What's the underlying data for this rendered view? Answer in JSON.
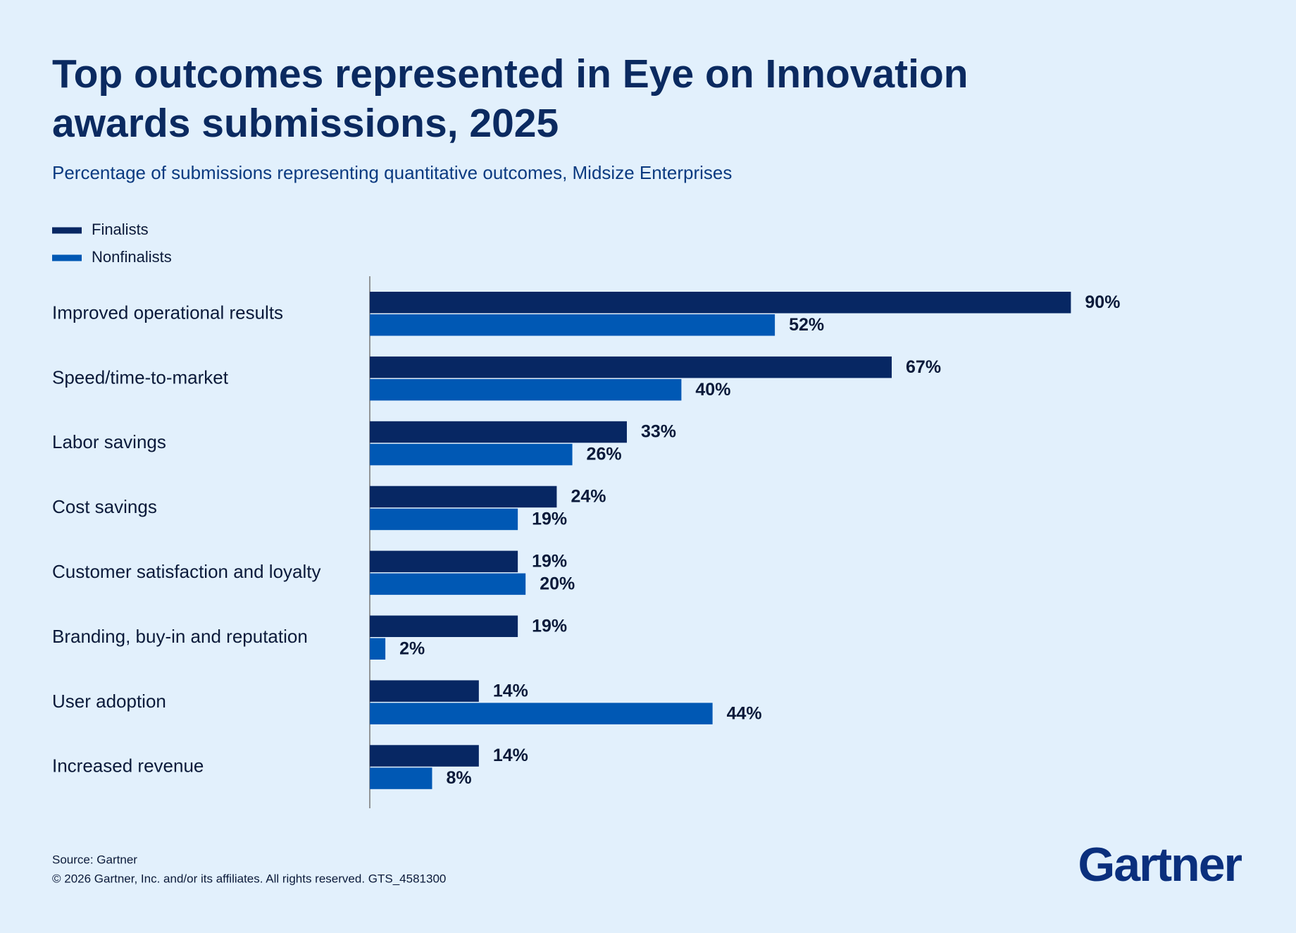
{
  "chart_data": {
    "type": "bar",
    "orientation": "horizontal",
    "title": "Top outcomes represented in Eye on Innovation awards submissions, 2025",
    "subtitle": "Percentage of submissions representing quantitative outcomes, Midsize Enterprises",
    "categories": [
      "Improved operational results",
      "Speed/time-to-market",
      "Labor savings",
      "Cost savings",
      "Customer satisfaction and loyalty",
      "Branding, buy-in and reputation",
      "User adoption",
      "Increased revenue"
    ],
    "series": [
      {
        "name": "Finalists",
        "color": "#072763",
        "values": [
          90,
          67,
          33,
          24,
          19,
          19,
          14,
          14
        ],
        "value_labels": [
          "90%",
          "67%",
          "33%",
          "24%",
          "19%",
          "19%",
          "14%",
          "14%"
        ]
      },
      {
        "name": "Nonfinalists",
        "color": "#0058b4",
        "values": [
          52,
          40,
          26,
          19,
          20,
          2,
          44,
          8
        ],
        "value_labels": [
          "52%",
          "40%",
          "26%",
          "19%",
          "20%",
          "2%",
          "44%",
          "8%"
        ]
      }
    ],
    "legend": "top-left"
  },
  "source": "Source: Gartner",
  "copyright": "© 2026 Gartner, Inc. and/or its affiliates. All rights reserved. GTS_4581300",
  "logo": "Gartner"
}
